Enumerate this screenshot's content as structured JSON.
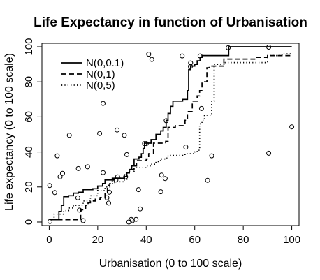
{
  "chart_data": {
    "type": "scatter",
    "title": "Life Expectancy in function of Urbanisation",
    "xlabel": "Urbanisation (0 to 100 scale)",
    "ylabel": "Life expectancy (0 to 100 scale)",
    "xlim": [
      -3,
      103
    ],
    "ylim": [
      -2,
      102
    ],
    "xticks": [
      0,
      20,
      40,
      60,
      80,
      100
    ],
    "yticks": [
      0,
      20,
      40,
      60,
      80,
      100
    ],
    "grid": false,
    "legend_position": "top-left",
    "points": [
      {
        "x": 0.3,
        "y": 0.3
      },
      {
        "x": 0.2,
        "y": 20.8
      },
      {
        "x": 2.3,
        "y": 16.8
      },
      {
        "x": 3.3,
        "y": 37.8
      },
      {
        "x": 4.5,
        "y": 25.8
      },
      {
        "x": 5.5,
        "y": 27.8
      },
      {
        "x": 8.3,
        "y": 49.5
      },
      {
        "x": 11.8,
        "y": 13.8
      },
      {
        "x": 12.0,
        "y": 30.5
      },
      {
        "x": 12.5,
        "y": 6.8
      },
      {
        "x": 14.0,
        "y": 0.8
      },
      {
        "x": 15.8,
        "y": 31.5
      },
      {
        "x": 20.8,
        "y": 50.5
      },
      {
        "x": 22.2,
        "y": 67.7
      },
      {
        "x": 22.2,
        "y": 28.2
      },
      {
        "x": 23.8,
        "y": 13.8
      },
      {
        "x": 24.8,
        "y": 17.0
      },
      {
        "x": 24.5,
        "y": 10.8
      },
      {
        "x": 27.5,
        "y": 24.0
      },
      {
        "x": 28.2,
        "y": 25.8
      },
      {
        "x": 28.0,
        "y": 52.5
      },
      {
        "x": 31.0,
        "y": 49.5
      },
      {
        "x": 31.5,
        "y": 25.8
      },
      {
        "x": 32.0,
        "y": 38.5
      },
      {
        "x": 32.8,
        "y": 0.0
      },
      {
        "x": 33.8,
        "y": 1.5
      },
      {
        "x": 34.3,
        "y": 0.8
      },
      {
        "x": 35.8,
        "y": 1.5
      },
      {
        "x": 36.8,
        "y": 18.5
      },
      {
        "x": 37.5,
        "y": 7.5
      },
      {
        "x": 39.3,
        "y": 44.8
      },
      {
        "x": 40.0,
        "y": 44.8
      },
      {
        "x": 41.0,
        "y": 95.8
      },
      {
        "x": 42.3,
        "y": 92.8
      },
      {
        "x": 46.3,
        "y": 26.8
      },
      {
        "x": 46.0,
        "y": 17.3
      },
      {
        "x": 47.8,
        "y": 24.8
      },
      {
        "x": 48.2,
        "y": 57.8
      },
      {
        "x": 54.8,
        "y": 94.8
      },
      {
        "x": 56.3,
        "y": 42.8
      },
      {
        "x": 58.2,
        "y": 88.8
      },
      {
        "x": 58.3,
        "y": 90.8
      },
      {
        "x": 62.2,
        "y": 94.8
      },
      {
        "x": 62.8,
        "y": 64.8
      },
      {
        "x": 65.3,
        "y": 23.8
      },
      {
        "x": 67.0,
        "y": 37.8
      },
      {
        "x": 73.8,
        "y": 99.5
      },
      {
        "x": 90.5,
        "y": 99.8
      },
      {
        "x": 90.5,
        "y": 39.3
      },
      {
        "x": 100.0,
        "y": 54.3
      }
    ],
    "series": [
      {
        "name": "N(0,0.1)",
        "style": "solid",
        "steps": [
          [
            0.3,
            1.3
          ],
          [
            4,
            6
          ],
          [
            5,
            9.5
          ],
          [
            6,
            14.5
          ],
          [
            8,
            15
          ],
          [
            10,
            16.5
          ],
          [
            12,
            17
          ],
          [
            14,
            18.5
          ],
          [
            18,
            19
          ],
          [
            20,
            20.5
          ],
          [
            22,
            22
          ],
          [
            23,
            24
          ],
          [
            26,
            25
          ],
          [
            31,
            26
          ],
          [
            32,
            28
          ],
          [
            33,
            30
          ],
          [
            34,
            32
          ],
          [
            35,
            36
          ],
          [
            37,
            37
          ],
          [
            38,
            39
          ],
          [
            38.7,
            42
          ],
          [
            39.3,
            45
          ],
          [
            42,
            47
          ],
          [
            44,
            50
          ],
          [
            46,
            52
          ],
          [
            47,
            54
          ],
          [
            48.2,
            58
          ],
          [
            49,
            62
          ],
          [
            50,
            66
          ],
          [
            51,
            69
          ],
          [
            55,
            70
          ],
          [
            57,
            75
          ],
          [
            57.5,
            87
          ],
          [
            58.3,
            89
          ],
          [
            60,
            90
          ],
          [
            61,
            92
          ],
          [
            62.2,
            94
          ],
          [
            63,
            95
          ],
          [
            74,
            100
          ],
          [
            100,
            100
          ]
        ]
      },
      {
        "name": "N(0,1)",
        "style": "dashed",
        "steps": [
          [
            0.3,
            1.3
          ],
          [
            13,
            7
          ],
          [
            15,
            9.5
          ],
          [
            16,
            11
          ],
          [
            17,
            12
          ],
          [
            19,
            13
          ],
          [
            21,
            14
          ],
          [
            23,
            17
          ],
          [
            24,
            21
          ],
          [
            25,
            22
          ],
          [
            26,
            24
          ],
          [
            28,
            25
          ],
          [
            31,
            27
          ],
          [
            32,
            28
          ],
          [
            33,
            30
          ],
          [
            35,
            32
          ],
          [
            36,
            35
          ],
          [
            40,
            36
          ],
          [
            41,
            39
          ],
          [
            43,
            45
          ],
          [
            48,
            46
          ],
          [
            49,
            54
          ],
          [
            52,
            55
          ],
          [
            56,
            58
          ],
          [
            57,
            63
          ],
          [
            59,
            69
          ],
          [
            61,
            72
          ],
          [
            62,
            75
          ],
          [
            63,
            80
          ],
          [
            65,
            88
          ],
          [
            66,
            89
          ],
          [
            72,
            93
          ],
          [
            85,
            94
          ],
          [
            90,
            95
          ],
          [
            100,
            95
          ]
        ]
      },
      {
        "name": "N(0,5)",
        "style": "dotted",
        "steps": [
          [
            0.3,
            1.3
          ],
          [
            2,
            4.5
          ],
          [
            6,
            6.5
          ],
          [
            8,
            8
          ],
          [
            10,
            9.5
          ],
          [
            14,
            12
          ],
          [
            17,
            15
          ],
          [
            20,
            18
          ],
          [
            23,
            20
          ],
          [
            25,
            22
          ],
          [
            27,
            23
          ],
          [
            31,
            24
          ],
          [
            32,
            28
          ],
          [
            33,
            29
          ],
          [
            35,
            31
          ],
          [
            40,
            32
          ],
          [
            42,
            33
          ],
          [
            44,
            34
          ],
          [
            45,
            35
          ],
          [
            46,
            36
          ],
          [
            48.5,
            37
          ],
          [
            49,
            38
          ],
          [
            56,
            39
          ],
          [
            60,
            40
          ],
          [
            61,
            41
          ],
          [
            62,
            56
          ],
          [
            63,
            58
          ],
          [
            64,
            61
          ],
          [
            67,
            69
          ],
          [
            68,
            90
          ],
          [
            72,
            91
          ],
          [
            90,
            95
          ],
          [
            96,
            96
          ],
          [
            100,
            96
          ]
        ]
      }
    ]
  }
}
